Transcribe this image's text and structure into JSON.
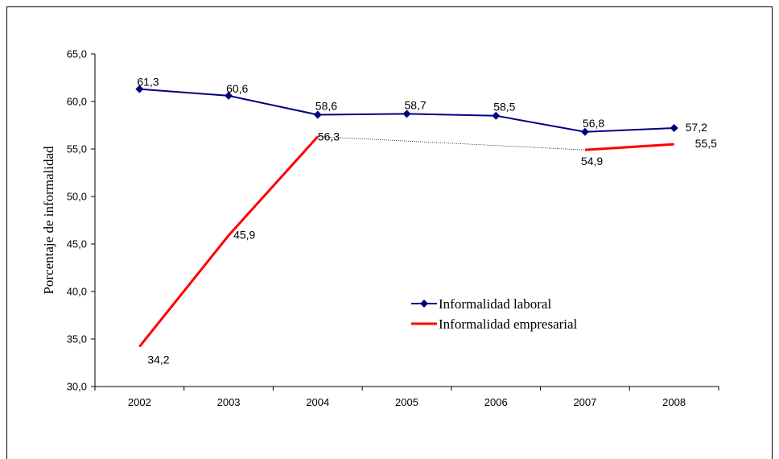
{
  "chart_data": {
    "type": "line",
    "categories": [
      "2002",
      "2003",
      "2004",
      "2005",
      "2006",
      "2007",
      "2008"
    ],
    "ylabel": "Porcentaje de informalidad",
    "ylim": [
      30,
      65
    ],
    "yticks": [
      "30,0",
      "35,0",
      "40,0",
      "45,0",
      "50,0",
      "55,0",
      "60,0",
      "65,0"
    ],
    "grid": false,
    "legend_position": "center-right",
    "series": [
      {
        "name": "Informalidad laboral",
        "color": "#000080",
        "marker": "diamond",
        "values": [
          61.3,
          60.6,
          58.6,
          58.7,
          58.5,
          56.8,
          57.2
        ],
        "labels": [
          "61,3",
          "60,6",
          "58,6",
          "58,7",
          "58,5",
          "56,8",
          "57,2"
        ]
      },
      {
        "name": "Informalidad empresarial",
        "color": "#ff0000",
        "marker": "none",
        "values": [
          34.2,
          45.9,
          56.3,
          null,
          null,
          54.9,
          55.5
        ],
        "labels": [
          "34,2",
          "45,9",
          "56,3",
          "",
          "",
          "54,9",
          "55,5"
        ],
        "gap_connector": "dotted"
      }
    ]
  }
}
